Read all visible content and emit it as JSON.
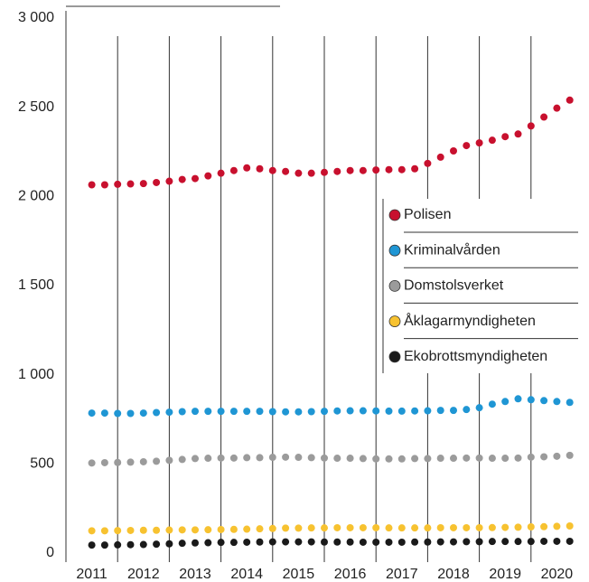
{
  "chart_data": {
    "type": "scatter-line",
    "x": [
      2011.5,
      2011.75,
      2012,
      2012.25,
      2012.5,
      2012.75,
      2013,
      2013.25,
      2013.5,
      2013.75,
      2014,
      2014.25,
      2014.5,
      2014.75,
      2015,
      2015.25,
      2015.5,
      2015.75,
      2016,
      2016.25,
      2016.5,
      2016.75,
      2017,
      2017.25,
      2017.5,
      2017.75,
      2018,
      2018.25,
      2018.5,
      2018.75,
      2019,
      2019.25,
      2019.5,
      2019.75,
      2020,
      2020.25,
      2020.5,
      2020.75
    ],
    "xlim": [
      2011,
      2021
    ],
    "xticks": [
      {
        "value": 2011.5,
        "label": "2011"
      },
      {
        "value": 2012.5,
        "label": "2012"
      },
      {
        "value": 2013.5,
        "label": "2013"
      },
      {
        "value": 2014.5,
        "label": "2014"
      },
      {
        "value": 2015.5,
        "label": "2015"
      },
      {
        "value": 2016.5,
        "label": "2016"
      },
      {
        "value": 2017.5,
        "label": "2017"
      },
      {
        "value": 2018.5,
        "label": "2018"
      },
      {
        "value": 2019.5,
        "label": "2019"
      },
      {
        "value": 2020.5,
        "label": "2020"
      }
    ],
    "ylim": [
      0,
      3000
    ],
    "yticks": [
      0,
      500,
      {
        "value": 1000,
        "label": "1 000"
      },
      {
        "value": 1500,
        "label": "1 500"
      },
      {
        "value": 2000,
        "label": "2 000"
      },
      {
        "value": 2500,
        "label": "2 500"
      },
      {
        "value": 3000,
        "label": "3 000"
      }
    ],
    "grid": false,
    "legend": "right",
    "series": [
      {
        "name": "Polisen",
        "color": "#c8102e",
        "values": [
          2065,
          2065,
          2068,
          2070,
          2072,
          2078,
          2085,
          2095,
          2100,
          2115,
          2130,
          2145,
          2160,
          2155,
          2145,
          2140,
          2130,
          2130,
          2135,
          2140,
          2145,
          2145,
          2148,
          2150,
          2150,
          2155,
          2185,
          2220,
          2255,
          2285,
          2300,
          2315,
          2335,
          2350,
          2395,
          2445,
          2495,
          2540
        ]
      },
      {
        "name": "Kriminalvården",
        "color": "#1f96d4",
        "values": [
          785,
          785,
          783,
          783,
          785,
          788,
          790,
          793,
          795,
          795,
          795,
          795,
          795,
          795,
          793,
          792,
          792,
          793,
          795,
          797,
          798,
          798,
          797,
          796,
          796,
          797,
          798,
          800,
          800,
          805,
          815,
          835,
          850,
          865,
          860,
          855,
          850,
          845
        ]
      },
      {
        "name": "Domstolsverket",
        "color": "#9b9b9b",
        "values": [
          505,
          507,
          508,
          510,
          512,
          515,
          520,
          525,
          530,
          532,
          533,
          533,
          535,
          535,
          537,
          538,
          537,
          535,
          533,
          532,
          532,
          530,
          528,
          528,
          528,
          530,
          530,
          532,
          532,
          533,
          533,
          532,
          532,
          533,
          538,
          540,
          543,
          548
        ]
      },
      {
        "name": "Åklagarmyndigheten",
        "color": "#f7c230",
        "values": [
          125,
          125,
          126,
          127,
          128,
          128,
          129,
          130,
          130,
          131,
          132,
          133,
          134,
          136,
          138,
          140,
          140,
          141,
          141,
          142,
          142,
          142,
          142,
          141,
          141,
          141,
          141,
          142,
          142,
          142,
          142,
          143,
          144,
          145,
          147,
          148,
          150,
          152
        ]
      },
      {
        "name": "Ekobrottsmyndigheten",
        "color": "#1a1a1a",
        "values": [
          45,
          45,
          46,
          47,
          48,
          50,
          52,
          55,
          57,
          58,
          60,
          60,
          61,
          62,
          63,
          63,
          63,
          63,
          62,
          62,
          62,
          61,
          61,
          61,
          61,
          62,
          62,
          63,
          63,
          64,
          64,
          65,
          65,
          65,
          65,
          66,
          66,
          66
        ]
      }
    ]
  }
}
